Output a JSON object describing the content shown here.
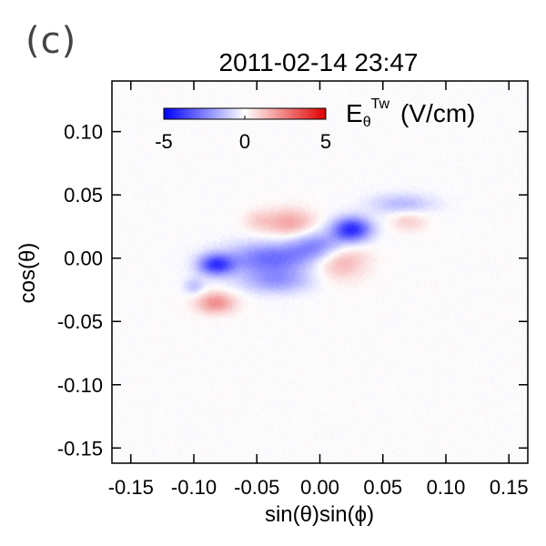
{
  "panel_label": "(c)",
  "chart_data": {
    "type": "heatmap",
    "title": "2011-02-14 23:47",
    "xlabel": "sin(θ)sin(ϕ)",
    "ylabel": "cos(θ)",
    "xlim": [
      -0.165,
      0.165
    ],
    "ylim": [
      -0.162,
      0.14
    ],
    "x_ticks": [
      -0.15,
      -0.1,
      -0.05,
      0.0,
      0.05,
      0.1,
      0.15
    ],
    "x_tick_labels": [
      "-0.15",
      "-0.10",
      "-0.05",
      "0.00",
      "0.05",
      "0.10",
      "0.15"
    ],
    "y_ticks": [
      0.1,
      0.05,
      0.0,
      -0.05,
      -0.1,
      -0.15
    ],
    "y_tick_labels": [
      "0.10",
      "0.05",
      "0.00",
      "-0.05",
      "-0.10",
      "-0.15"
    ],
    "colorbar": {
      "label_main": "E",
      "label_sub": "θ",
      "label_sup": "Tw",
      "label_units": "(V/cm)",
      "min": -5,
      "max": 5,
      "tick_values": [
        -5,
        0,
        5
      ],
      "tick_labels": [
        "-5",
        "0",
        "5"
      ],
      "colors": {
        "low": "#0000ff",
        "mid": "#ffffff",
        "high": "#e00000"
      }
    },
    "features": [
      {
        "name": "negative-band-west",
        "x": -0.083,
        "y": -0.005,
        "sx": 0.01,
        "sy": 0.006,
        "value": -3.6
      },
      {
        "name": "negative-band-center",
        "x": -0.04,
        "y": 0.0,
        "sx": 0.025,
        "sy": 0.009,
        "value": -2.8
      },
      {
        "name": "negative-band-south",
        "x": -0.035,
        "y": -0.018,
        "sx": 0.02,
        "sy": 0.007,
        "value": -1.8
      },
      {
        "name": "negative-band-middle",
        "x": 0.0,
        "y": 0.01,
        "sx": 0.016,
        "sy": 0.008,
        "value": -2.5
      },
      {
        "name": "negative-core-east",
        "x": 0.025,
        "y": 0.023,
        "sx": 0.011,
        "sy": 0.007,
        "value": -4.2
      },
      {
        "name": "negative-band-northeast",
        "x": 0.065,
        "y": 0.043,
        "sx": 0.018,
        "sy": 0.006,
        "value": -1.4
      },
      {
        "name": "negative-spot-sw",
        "x": -0.1,
        "y": -0.022,
        "sx": 0.006,
        "sy": 0.005,
        "value": -1.2
      },
      {
        "name": "positive-patch-north",
        "x": -0.025,
        "y": 0.028,
        "sx": 0.014,
        "sy": 0.008,
        "value": 1.8
      },
      {
        "name": "positive-patch-southeast",
        "x": 0.015,
        "y": 0.0,
        "sx": 0.015,
        "sy": 0.011,
        "value": 1.9
      },
      {
        "name": "positive-patch-southwest",
        "x": -0.083,
        "y": -0.035,
        "sx": 0.011,
        "sy": 0.006,
        "value": 2.2
      },
      {
        "name": "positive-patch-east",
        "x": 0.07,
        "y": 0.03,
        "sx": 0.01,
        "sy": 0.006,
        "value": 1.0
      },
      {
        "name": "positive-patch-faint-nw",
        "x": -0.05,
        "y": 0.03,
        "sx": 0.008,
        "sy": 0.006,
        "value": 0.7
      }
    ]
  }
}
